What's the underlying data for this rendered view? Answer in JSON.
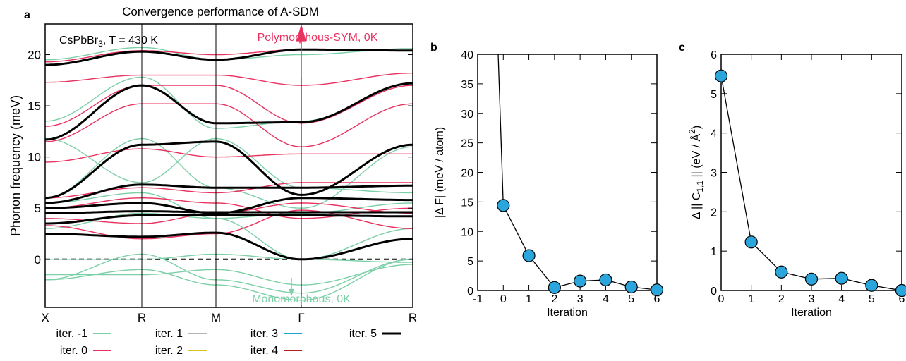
{
  "panel_labels": [
    "a",
    "b",
    "c"
  ],
  "colors": {
    "iter_-1": "#7dcfa7",
    "iter_0": "#e8325f",
    "iter_1": "#b5b5b5",
    "iter_2": "#d4c42a",
    "iter_3": "#1fa6d8",
    "iter_4": "#b51f1f",
    "iter_5": "#000000",
    "marker": "#2aa6dc"
  },
  "chart_data": [
    {
      "type": "line",
      "title": "Convergence performance of A-SDM",
      "ylabel": "Phonon frequency (meV)",
      "xlabel": "",
      "ylim": [
        -4.7,
        23
      ],
      "yticks": [
        0,
        5,
        10,
        15,
        20
      ],
      "x_ticklabels": [
        "X",
        "R",
        "M",
        "Γ",
        "R"
      ],
      "grid": false,
      "legend_position": "bottom",
      "annotations": [
        {
          "text": "CsPbBr3, T = 430 K",
          "base": "CsPbBr",
          "sub": "3",
          "rest": ", T = 430 K"
        },
        {
          "text": "Polymorphous-SYM, 0K",
          "color": "#e8325f"
        },
        {
          "text": "Monomorphous, 0K",
          "color": "#7dcfa7"
        }
      ],
      "series": [
        {
          "name": "iter. -1",
          "color": "#7dcfa7",
          "bands": [
            [
              -2.0,
              -1.0,
              -2.5,
              -4.0,
              0.0
            ],
            [
              -2.0,
              0.5,
              -2.0,
              -3.3,
              0.0
            ],
            [
              -1.5,
              -1.5,
              -1.0,
              -2.5,
              -0.5
            ],
            [
              0.0,
              0.0,
              0.5,
              0.0,
              -0.3
            ],
            [
              3.0,
              4.5,
              4.0,
              0.0,
              3.0
            ],
            [
              5.5,
              6.5,
              4.0,
              4.5,
              5.5
            ],
            [
              6.0,
              11.8,
              7.0,
              5.0,
              11.0
            ],
            [
              11.8,
              7.5,
              11.8,
              7.0,
              6.5
            ],
            [
              13.5,
              17.8,
              12.8,
              13.5,
              17.0
            ],
            [
              19.5,
              20.7,
              19.5,
              20.0,
              20.6
            ]
          ]
        },
        {
          "name": "iter. 0",
          "color": "#e8325f",
          "bands": [
            [
              3.3,
              2.0,
              2.5,
              4.8,
              3.0
            ],
            [
              4.0,
              3.5,
              4.5,
              5.5,
              4.5
            ],
            [
              5.0,
              6.0,
              5.5,
              4.0,
              5.0
            ],
            [
              6.0,
              7.0,
              6.5,
              7.5,
              7.5
            ],
            [
              9.5,
              10.8,
              10.0,
              10.3,
              10.3
            ],
            [
              11.5,
              15.2,
              15.2,
              11.0,
              15.2
            ],
            [
              13.0,
              17.0,
              17.0,
              13.3,
              17.0
            ],
            [
              17.3,
              18.0,
              18.0,
              17.0,
              18.2
            ],
            [
              19.3,
              20.4,
              20.0,
              20.5,
              20.4
            ]
          ]
        },
        {
          "name": "iter. 1",
          "color": "#b5b5b5",
          "bands": []
        },
        {
          "name": "iter. 2",
          "color": "#d4c42a",
          "bands": []
        },
        {
          "name": "iter. 3",
          "color": "#1fa6d8",
          "bands": []
        },
        {
          "name": "iter. 4",
          "color": "#b51f1f",
          "bands": []
        },
        {
          "name": "iter. 5",
          "color": "#000000",
          "bands": [
            [
              2.5,
              2.2,
              2.6,
              0.0,
              2.0
            ],
            [
              3.5,
              4.3,
              4.3,
              4.3,
              4.2
            ],
            [
              4.5,
              4.7,
              4.6,
              4.6,
              4.6
            ],
            [
              5.0,
              5.5,
              4.5,
              6.0,
              5.8
            ],
            [
              5.5,
              7.3,
              7.0,
              7.0,
              7.2
            ],
            [
              6.0,
              11.2,
              11.5,
              6.3,
              11.2
            ],
            [
              11.7,
              17.0,
              13.3,
              13.4,
              17.2
            ],
            [
              19.0,
              20.3,
              19.5,
              20.5,
              20.4
            ]
          ]
        }
      ]
    },
    {
      "type": "line",
      "title": "",
      "xlabel": "Iteration",
      "ylabel": "|Δ F| (meV / atom)",
      "xlim": [
        -1,
        6
      ],
      "ylim": [
        0,
        40
      ],
      "xticks": [
        -1,
        0,
        1,
        2,
        3,
        4,
        5,
        6
      ],
      "yticks": [
        0,
        5,
        10,
        15,
        20,
        25,
        30,
        35,
        40
      ],
      "grid": false,
      "points": [
        [
          0,
          14.4
        ],
        [
          1,
          5.9
        ],
        [
          2,
          0.5
        ],
        [
          3,
          1.6
        ],
        [
          4,
          1.8
        ],
        [
          5,
          0.6
        ],
        [
          6,
          0.1
        ]
      ],
      "extra_line_from": [
        -0.2,
        40
      ]
    },
    {
      "type": "line",
      "title": "",
      "xlabel": "Iteration",
      "ylabel": "Δ || C1,1 || (eV / Å2)",
      "ylabel_parts": {
        "pre": "Δ || C",
        "sub": "1,1",
        "mid": " || (eV / Å",
        "sup": "2",
        "post": ")"
      },
      "xlim": [
        0,
        6
      ],
      "ylim": [
        0,
        6
      ],
      "xticks": [
        0,
        1,
        2,
        3,
        4,
        5,
        6
      ],
      "yticks": [
        0,
        1,
        2,
        3,
        4,
        5,
        6
      ],
      "grid": false,
      "points": [
        [
          0,
          5.45
        ],
        [
          1,
          1.23
        ],
        [
          2,
          0.47
        ],
        [
          3,
          0.29
        ],
        [
          4,
          0.31
        ],
        [
          5,
          0.13
        ],
        [
          6,
          0.0
        ]
      ]
    }
  ]
}
